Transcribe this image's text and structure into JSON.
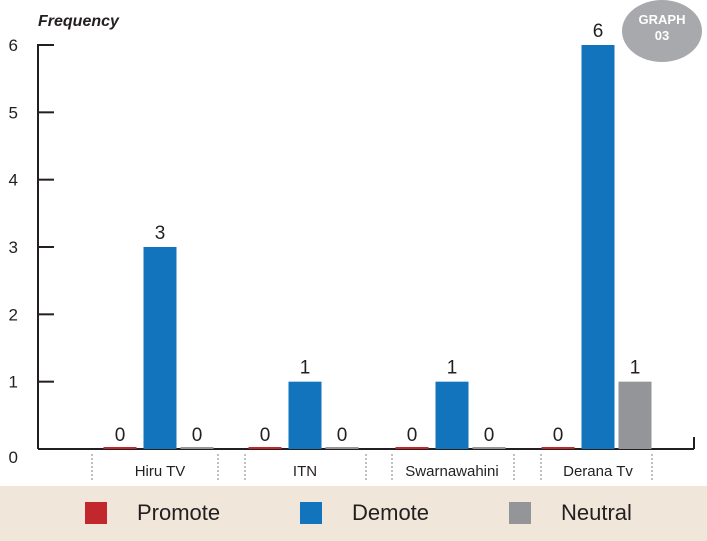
{
  "badge": {
    "line1": "GRAPH",
    "line2": "03"
  },
  "chart_data": {
    "type": "bar",
    "ylabel": "Frequency",
    "xlabel": "",
    "ylim": [
      0,
      6
    ],
    "yticks": [
      0,
      1,
      2,
      3,
      4,
      5,
      6
    ],
    "categories": [
      "Hiru TV",
      "ITN",
      "Swarnawahini",
      "Derana Tv"
    ],
    "series": [
      {
        "name": "Promote",
        "color": "#c1272d",
        "values": [
          0,
          0,
          0,
          0
        ]
      },
      {
        "name": "Demote",
        "color": "#1374be",
        "values": [
          3,
          1,
          1,
          6
        ]
      },
      {
        "name": "Neutral",
        "color": "#939598",
        "values": [
          0,
          0,
          0,
          1
        ]
      }
    ],
    "legend_position": "bottom",
    "grid": false
  },
  "legend": [
    {
      "label": "Promote",
      "color": "#c1272d"
    },
    {
      "label": "Demote",
      "color": "#1374be"
    },
    {
      "label": "Neutral",
      "color": "#939598"
    }
  ]
}
